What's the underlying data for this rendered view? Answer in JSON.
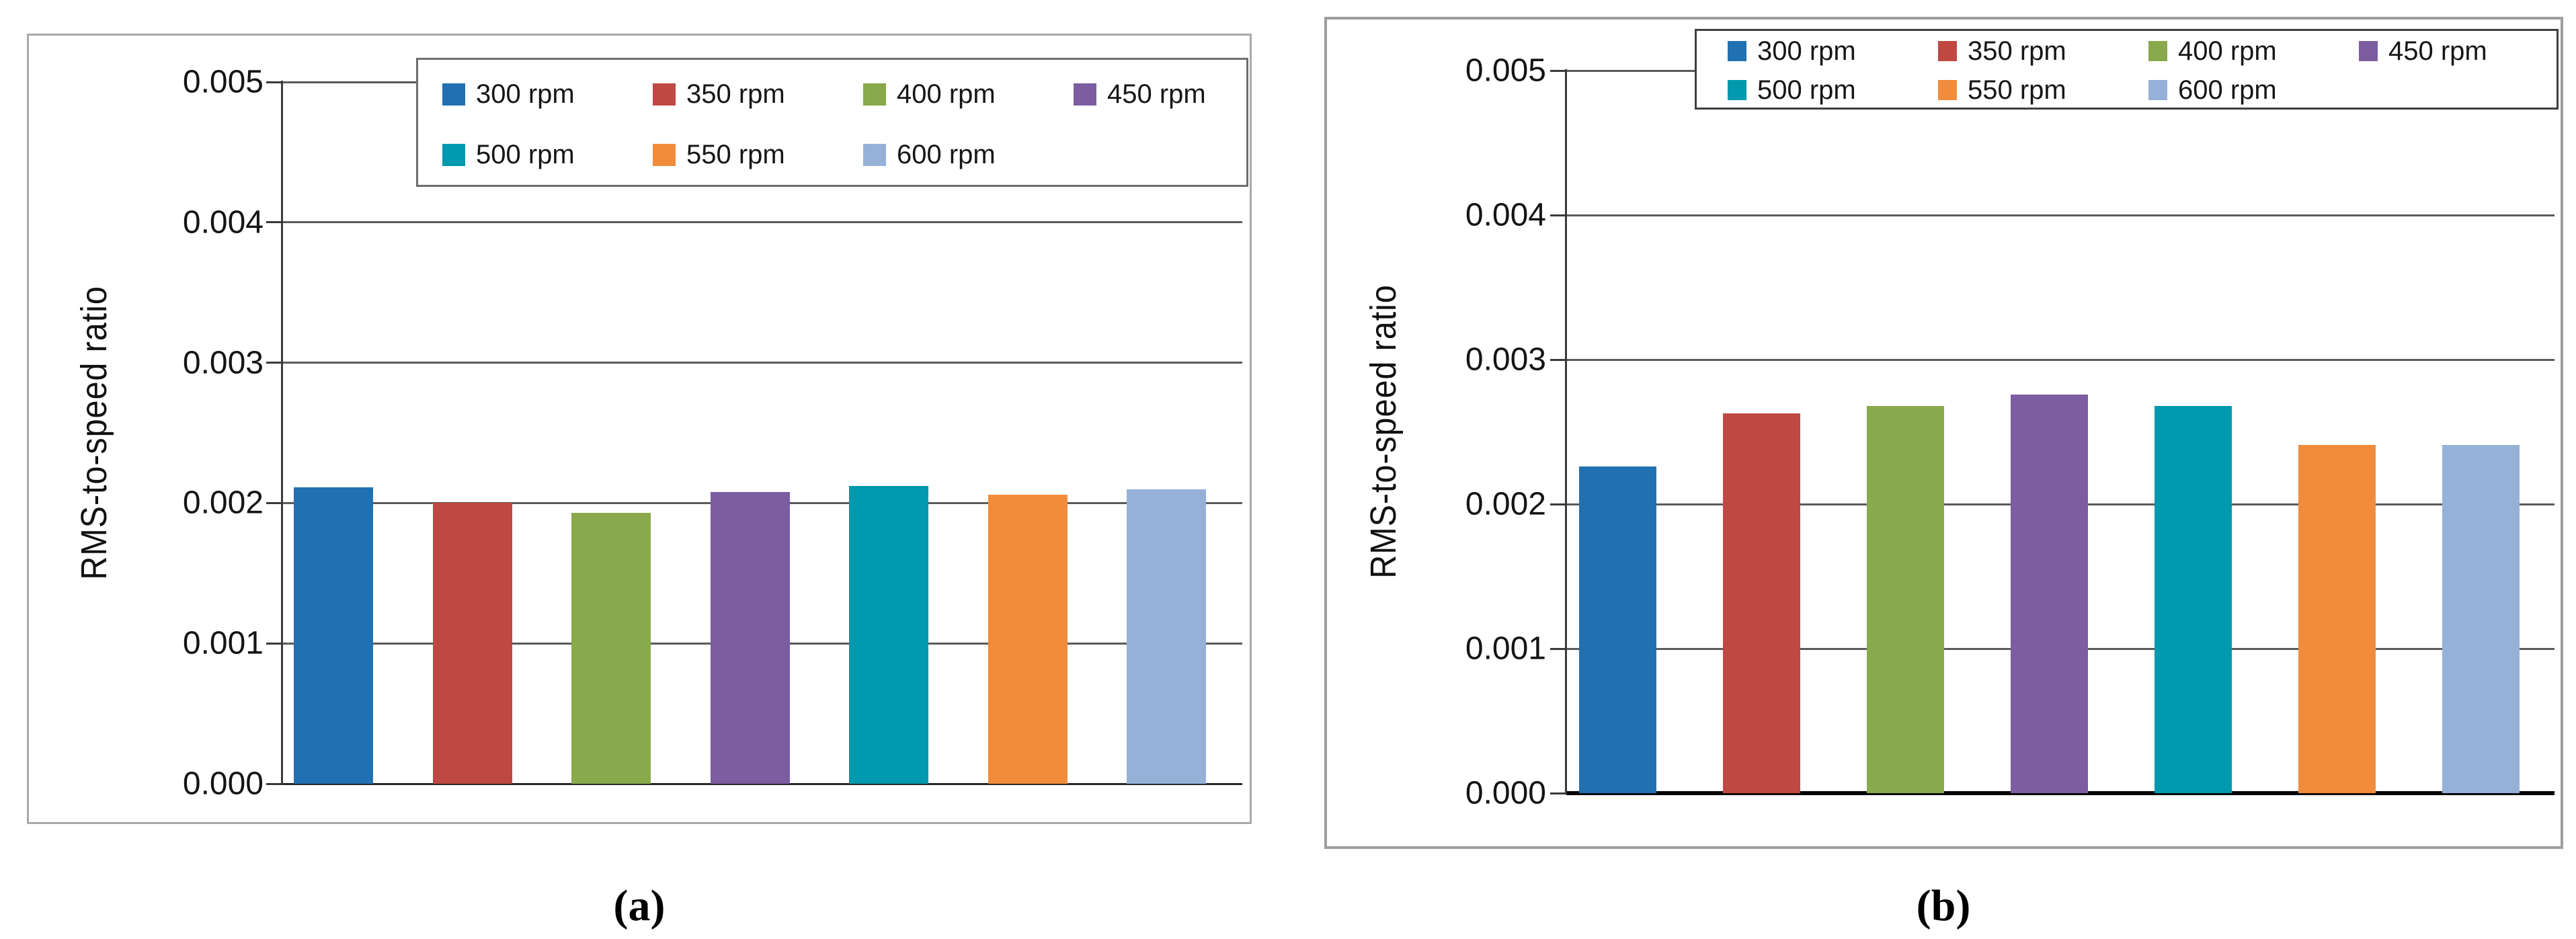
{
  "figure": {
    "caption_a": "(a)",
    "caption_b": "(b)"
  },
  "chart_data": [
    {
      "type": "bar",
      "title": "",
      "xlabel": "",
      "ylabel": "RMS-to-speed ratio",
      "categories": [
        "300 rpm",
        "350 rpm",
        "400 rpm",
        "450 rpm",
        "500 rpm",
        "550 rpm",
        "600 rpm"
      ],
      "values": [
        0.00211,
        0.002,
        0.00193,
        0.00208,
        0.00212,
        0.00206,
        0.0021
      ],
      "colors": [
        "#2171B2",
        "#BF4842",
        "#89A94C",
        "#7B5DA0",
        "#0099AD",
        "#F08C3C",
        "#95B1D8"
      ],
      "ylim": [
        0,
        0.005
      ],
      "ytick_step": 0.001,
      "ytick_labels": [
        "0.000",
        "0.001",
        "0.002",
        "0.003",
        "0.004",
        "0.005"
      ],
      "grid": true,
      "grid_color": "#5a5a5a",
      "legend_position": "inside-top-right",
      "legend_columns": 4
    },
    {
      "type": "bar",
      "title": "",
      "xlabel": "",
      "ylabel": "RMS-to-speed ratio",
      "categories": [
        "300 rpm",
        "350 rpm",
        "400 rpm",
        "450 rpm",
        "500 rpm",
        "550 rpm",
        "600 rpm"
      ],
      "values": [
        0.00226,
        0.00263,
        0.00268,
        0.00276,
        0.00268,
        0.00241,
        0.00241
      ],
      "colors": [
        "#2171B2",
        "#BF4842",
        "#89A94C",
        "#7B5DA0",
        "#0099AD",
        "#F08C3C",
        "#95B1D8"
      ],
      "ylim": [
        0,
        0.005
      ],
      "ytick_step": 0.001,
      "ytick_labels": [
        "0.000",
        "0.001",
        "0.002",
        "0.003",
        "0.004",
        "0.005"
      ],
      "grid": true,
      "grid_color": "#5a5a5a",
      "legend_position": "inside-top-right-over-top-border",
      "legend_columns": 4
    }
  ]
}
